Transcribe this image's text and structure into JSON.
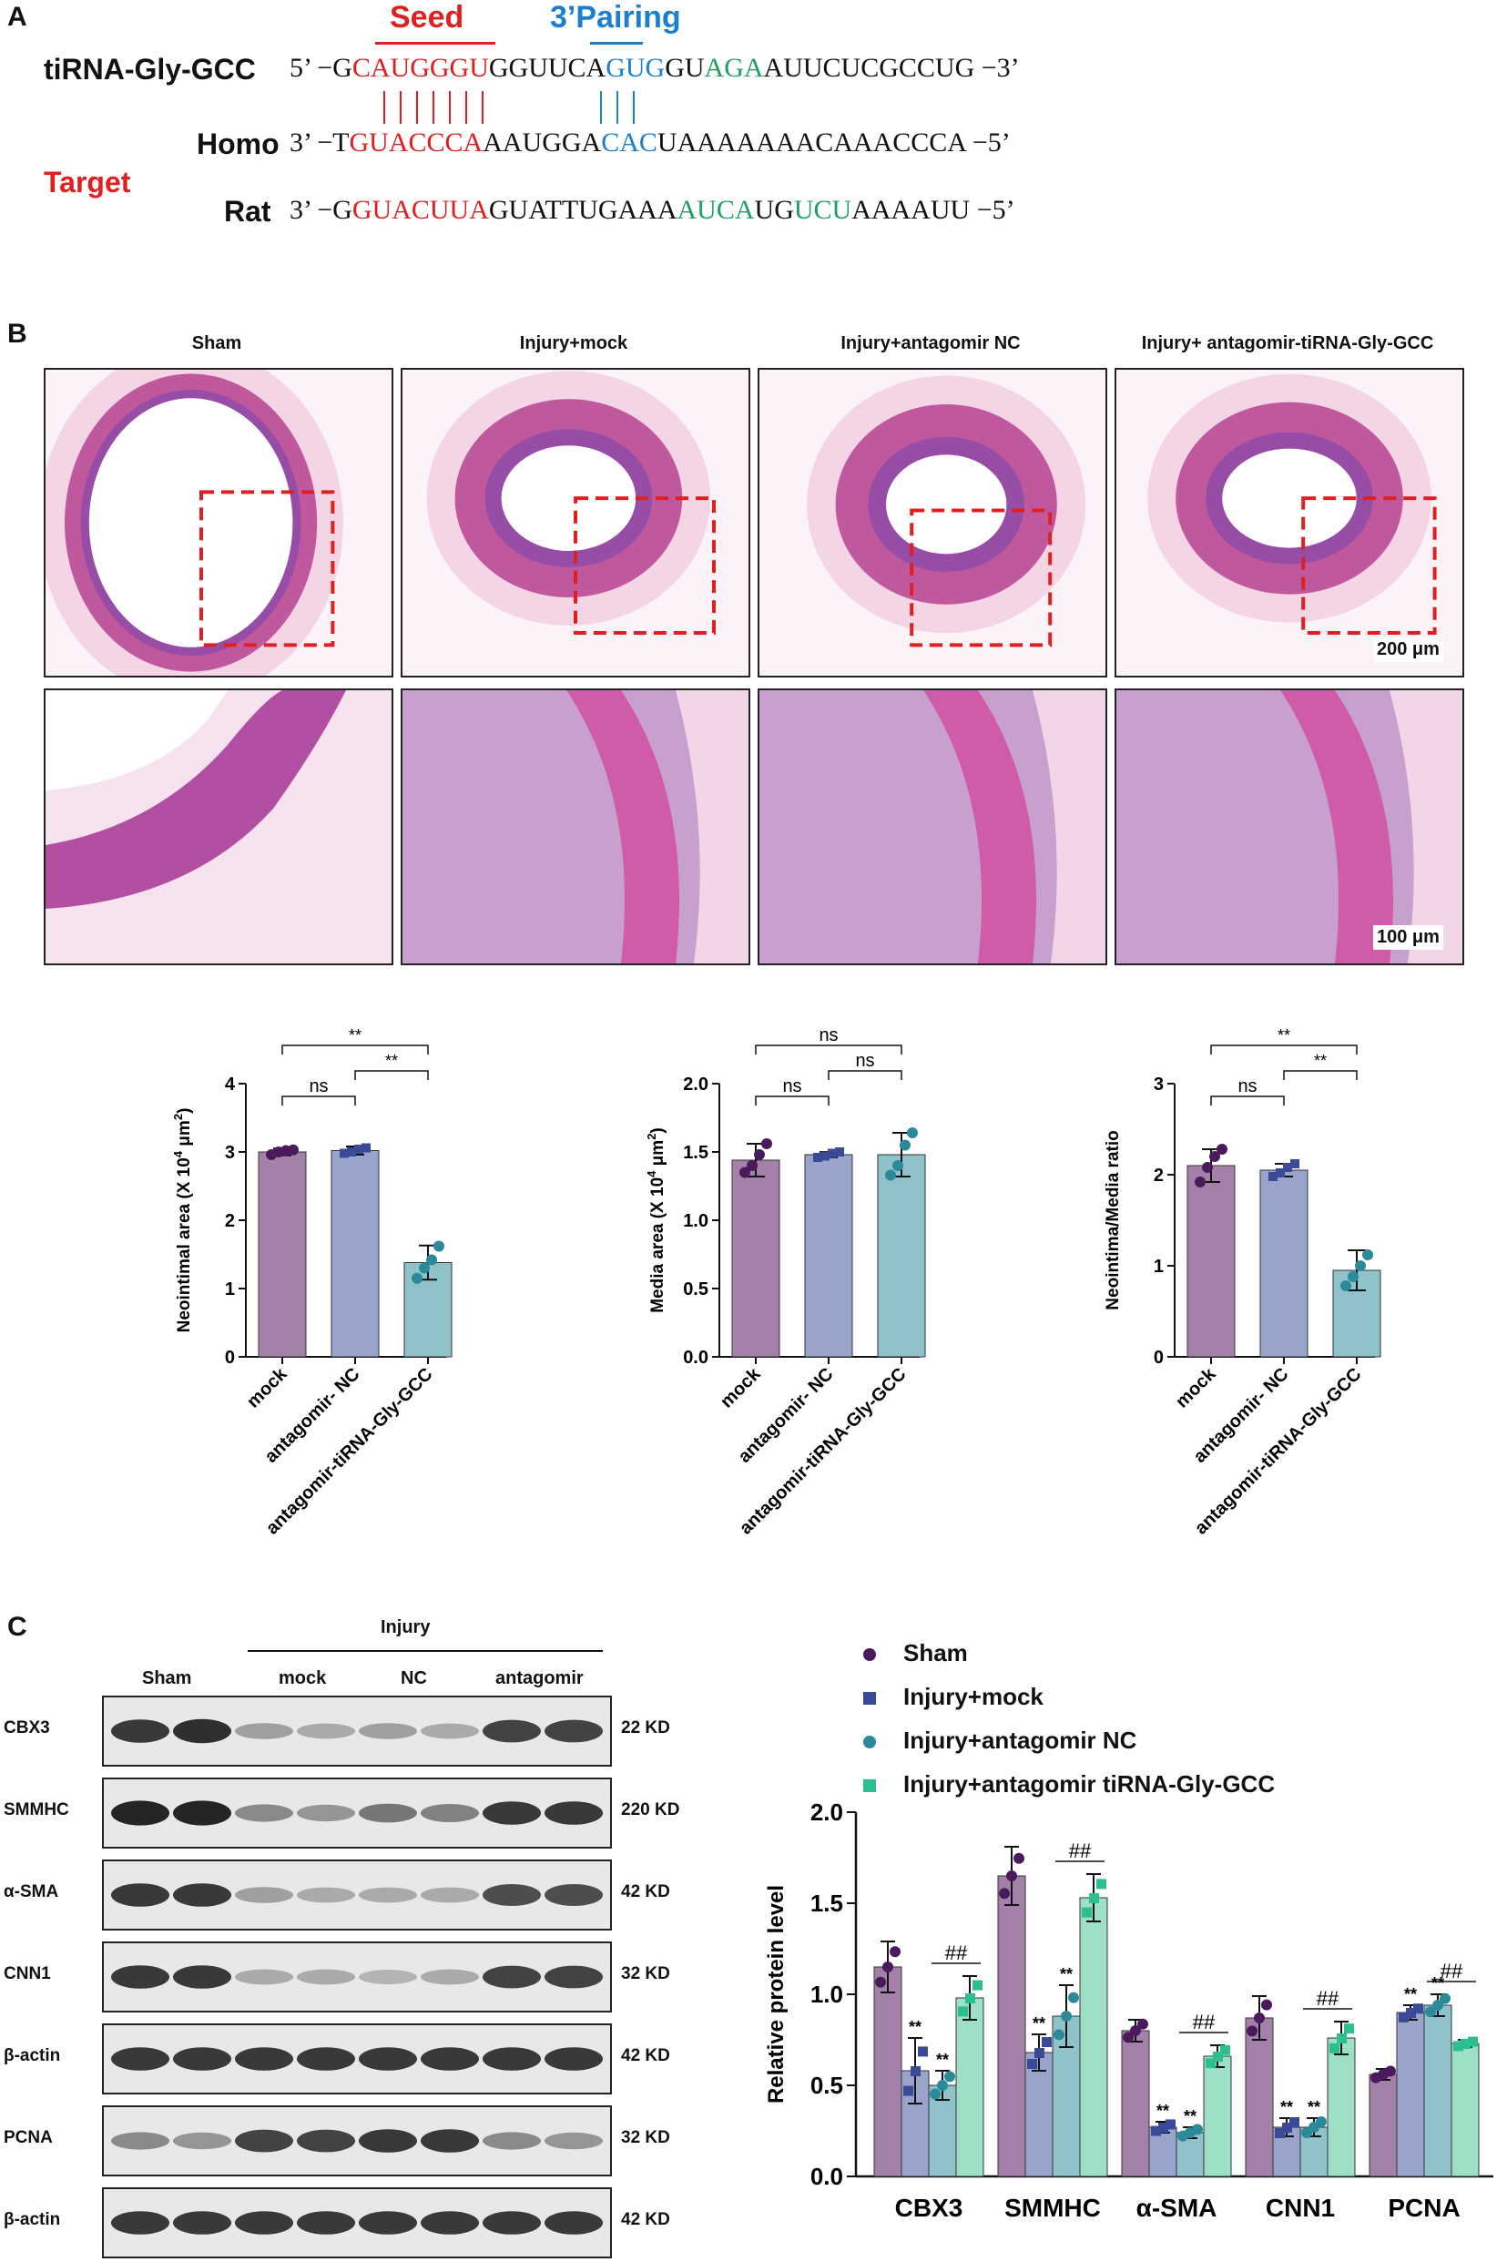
{
  "panel_letters": {
    "a": "A",
    "b": "B",
    "c": "C"
  },
  "sequence": {
    "seed_label": "Seed",
    "pairing_label": "3’Pairing",
    "target_label": "Target",
    "tirna_name": "tiRNA-Gly-GCC",
    "tirna_prefix": "5’   −G",
    "tirna_seed": "CAUGGGU",
    "tirna_mid": "GGUUCA",
    "tirna_pair": "GUG",
    "tirna_gu": "GU",
    "tirna_green": "AGA",
    "tirna_tail": "AUUCUCGCCUG   −3’",
    "homo_name": "Homo",
    "homo_prefix": "3’   −T",
    "homo_seed": "GUACCCA",
    "homo_mid": "AAUGGA",
    "homo_pair": "CAC",
    "homo_tail": "UAAAAAAACAAACCCA   −5’",
    "rat_name": "Rat",
    "rat_prefix": "3’   −G",
    "rat_seed": "GUACUUA",
    "rat_mid1": "GUATTUGAAA",
    "rat_green1": "AUCA",
    "rat_mid2": "UG",
    "rat_green2": "UCU",
    "rat_tail": "AAAAUU   −5’"
  },
  "histology": {
    "groups": [
      "Sham",
      "Injury+mock",
      "Injury+antagomir NC",
      "Injury+ antagomir-tiRNA-Gly-GCC"
    ],
    "scalebar_low": "200 μm",
    "scalebar_high": "100 μm"
  },
  "charts": [
    {
      "type": "bar",
      "categories": [
        "mock",
        "antagomir- NC",
        "antagomir-tiRNA-Gly-GCC"
      ],
      "values": [
        3.0,
        3.02,
        1.38
      ],
      "errors": [
        0.05,
        0.06,
        0.25
      ],
      "points": [
        [
          2.96,
          3.0,
          3.02,
          3.03
        ],
        [
          2.98,
          3.0,
          3.04,
          3.06
        ],
        [
          1.15,
          1.3,
          1.42,
          1.62
        ]
      ],
      "ylabel_text": "Neointimal area  (X 10",
      "ylabel_sup": "4",
      "ylabel_unit": " μm",
      "ylabel_sup2": "2",
      "ylabel_end": ")",
      "ylim": [
        0,
        4
      ],
      "yticks": [
        "0",
        "1",
        "2",
        "3",
        "4"
      ],
      "brackets": [
        {
          "from": 0,
          "to": 1,
          "label": "ns",
          "level": 0
        },
        {
          "from": 1,
          "to": 2,
          "label": "**",
          "level": 1
        },
        {
          "from": 0,
          "to": 2,
          "label": "**",
          "level": 2
        }
      ]
    },
    {
      "type": "bar",
      "categories": [
        "mock",
        "antagomir- NC",
        "antagomir-tiRNA-Gly-GCC"
      ],
      "values": [
        1.44,
        1.48,
        1.48
      ],
      "errors": [
        0.12,
        0.02,
        0.16
      ],
      "points": [
        [
          1.35,
          1.4,
          1.48,
          1.56
        ],
        [
          1.46,
          1.47,
          1.49,
          1.5
        ],
        [
          1.33,
          1.4,
          1.55,
          1.64
        ]
      ],
      "ylabel_text": "Media area  (X 10",
      "ylabel_sup": "4",
      "ylabel_unit": " μm",
      "ylabel_sup2": "2",
      "ylabel_end": ")",
      "ylim": [
        0,
        2.0
      ],
      "yticks": [
        "0.0",
        "0.5",
        "1.0",
        "1.5",
        "2.0"
      ],
      "brackets": [
        {
          "from": 0,
          "to": 1,
          "label": "ns",
          "level": 0
        },
        {
          "from": 1,
          "to": 2,
          "label": "ns",
          "level": 1
        },
        {
          "from": 0,
          "to": 2,
          "label": "ns",
          "level": 2
        }
      ]
    },
    {
      "type": "bar",
      "categories": [
        "mock",
        "antagomir- NC",
        "antagomir-tiRNA-Gly-GCC"
      ],
      "values": [
        2.1,
        2.05,
        0.95
      ],
      "errors": [
        0.18,
        0.07,
        0.22
      ],
      "points": [
        [
          1.92,
          2.08,
          2.2,
          2.28
        ],
        [
          1.98,
          2.02,
          2.08,
          2.12
        ],
        [
          0.78,
          0.88,
          1.0,
          1.12
        ]
      ],
      "ylabel_text": "Neointima/Media ratio",
      "ylabel_sup": "",
      "ylabel_unit": "",
      "ylabel_sup2": "",
      "ylabel_end": "",
      "ylim": [
        0,
        3
      ],
      "yticks": [
        "0",
        "1",
        "2",
        "3"
      ],
      "brackets": [
        {
          "from": 0,
          "to": 1,
          "label": "ns",
          "level": 0
        },
        {
          "from": 1,
          "to": 2,
          "label": "**",
          "level": 1
        },
        {
          "from": 0,
          "to": 2,
          "label": "**",
          "level": 2
        }
      ]
    }
  ],
  "blot": {
    "sham": "Sham",
    "injury": "Injury",
    "mock": "mock",
    "nc": "NC",
    "antagomir": "antagomir",
    "rows": [
      {
        "label": "CBX3",
        "kd": "22 KD",
        "intensity": [
          0.85,
          0.9,
          0.35,
          0.3,
          0.35,
          0.3,
          0.8,
          0.8
        ]
      },
      {
        "label": "SMMHC",
        "kd": "220 KD",
        "intensity": [
          0.95,
          0.95,
          0.45,
          0.4,
          0.55,
          0.5,
          0.85,
          0.85
        ]
      },
      {
        "label": "α-SMA",
        "kd": "42 KD",
        "intensity": [
          0.85,
          0.85,
          0.35,
          0.3,
          0.3,
          0.3,
          0.75,
          0.75
        ]
      },
      {
        "label": "CNN1",
        "kd": "32 KD",
        "intensity": [
          0.85,
          0.85,
          0.3,
          0.3,
          0.25,
          0.3,
          0.8,
          0.8
        ]
      },
      {
        "label": "β-actin",
        "kd": "42 KD",
        "intensity": [
          0.85,
          0.85,
          0.85,
          0.85,
          0.85,
          0.85,
          0.85,
          0.85
        ]
      },
      {
        "label": "PCNA",
        "kd": "32 KD",
        "intensity": [
          0.45,
          0.4,
          0.8,
          0.8,
          0.85,
          0.85,
          0.45,
          0.4
        ]
      },
      {
        "label": "β-actin",
        "kd": "42 KD",
        "intensity": [
          0.85,
          0.85,
          0.85,
          0.85,
          0.85,
          0.85,
          0.85,
          0.85
        ]
      }
    ]
  },
  "protein_chart": {
    "type": "bar",
    "categories": [
      "CBX3",
      "SMMHC",
      "α-SMA",
      "CNN1",
      "PCNA"
    ],
    "ylabel": "Relative  protein level",
    "ylim": [
      0,
      2.0
    ],
    "yticks": [
      "0.0",
      "0.5",
      "1.0",
      "1.5",
      "2.0"
    ],
    "series": [
      {
        "name": "Sham",
        "color": "#a481a8",
        "marker": "#4a1a5c",
        "shape": "circle",
        "values": [
          1.15,
          1.65,
          0.8,
          0.87,
          0.56
        ],
        "errors": [
          0.14,
          0.16,
          0.06,
          0.12,
          0.03
        ]
      },
      {
        "name": "Injury+mock",
        "color": "#9aa3cc",
        "marker": "#3b4a96",
        "shape": "square",
        "values": [
          0.58,
          0.68,
          0.27,
          0.27,
          0.9
        ],
        "errors": [
          0.18,
          0.1,
          0.03,
          0.05,
          0.04
        ]
      },
      {
        "name": "Injury+antagomir NC",
        "color": "#8fc2c9",
        "marker": "#2a8a9a",
        "shape": "circle",
        "values": [
          0.5,
          0.88,
          0.24,
          0.27,
          0.94
        ],
        "errors": [
          0.08,
          0.17,
          0.03,
          0.05,
          0.06
        ]
      },
      {
        "name": "Injury+antagomir tiRNA-Gly-GCC",
        "color": "#9ee0c6",
        "marker": "#2bbf90",
        "shape": "square",
        "values": [
          0.98,
          1.53,
          0.66,
          0.76,
          0.73
        ],
        "errors": [
          0.12,
          0.13,
          0.06,
          0.09,
          0.02
        ]
      }
    ],
    "sig_mock": [
      "**",
      "**",
      "**",
      "**",
      "**"
    ],
    "sig_nc": [
      "**",
      "**",
      "**",
      "**",
      "**"
    ],
    "sig_hash": [
      "##",
      "##",
      "##",
      "##",
      "##"
    ]
  }
}
